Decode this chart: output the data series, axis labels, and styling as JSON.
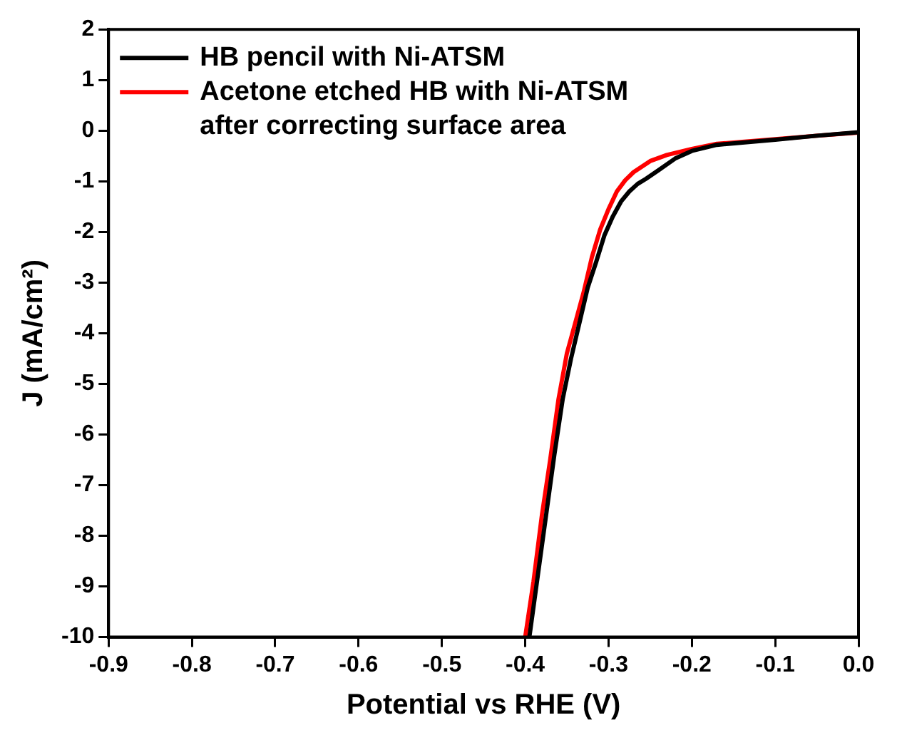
{
  "chart_data": {
    "type": "line",
    "xlabel": "Potential vs RHE (V)",
    "ylabel": "J (mA/cm²)",
    "xlim": [
      -0.9,
      0.0
    ],
    "xticks": [
      -0.9,
      -0.8,
      -0.7,
      -0.6,
      -0.5,
      -0.4,
      -0.3,
      -0.2,
      -0.1,
      {
        "value": 0,
        "label": "0.0"
      }
    ],
    "ylim": [
      -10,
      2
    ],
    "yticks": [
      -10,
      -9,
      -8,
      -7,
      -6,
      -5,
      -4,
      -3,
      -2,
      -1,
      0,
      1,
      2
    ],
    "grid": false,
    "legend": "top left",
    "marker": "none",
    "line_style": "solid",
    "series": [
      {
        "name": "HB pencil with Ni-ATSM",
        "color": "#000000",
        "x": [
          -0.395,
          -0.385,
          -0.375,
          -0.365,
          -0.355,
          -0.345,
          -0.335,
          -0.325,
          -0.315,
          -0.305,
          -0.295,
          -0.285,
          -0.275,
          -0.265,
          -0.255,
          -0.24,
          -0.22,
          -0.2,
          -0.17,
          -0.1,
          -0.05,
          0
        ],
        "values": [
          -10,
          -8.8,
          -7.6,
          -6.4,
          -5.3,
          -4.5,
          -3.8,
          -3.1,
          -2.6,
          -2.07,
          -1.7,
          -1.4,
          -1.2,
          -1.05,
          -0.95,
          -0.78,
          -0.55,
          -0.4,
          -0.28,
          -0.18,
          -0.1,
          -0.03
        ]
      },
      {
        "name": "Acetone etched HB with Ni-ATSM after correcting surface area",
        "color": "#ff0000",
        "x": [
          -0.4,
          -0.39,
          -0.38,
          -0.37,
          -0.36,
          -0.35,
          -0.34,
          -0.33,
          -0.32,
          -0.31,
          -0.3,
          -0.29,
          -0.28,
          -0.27,
          -0.25,
          -0.23,
          -0.2,
          -0.17,
          -0.1,
          -0.05,
          0
        ],
        "values": [
          -10,
          -8.9,
          -7.6,
          -6.5,
          -5.3,
          -4.4,
          -3.8,
          -3.2,
          -2.5,
          -1.95,
          -1.55,
          -1.2,
          -0.98,
          -0.82,
          -0.6,
          -0.48,
          -0.36,
          -0.26,
          -0.17,
          -0.1,
          -0.04
        ]
      }
    ]
  }
}
